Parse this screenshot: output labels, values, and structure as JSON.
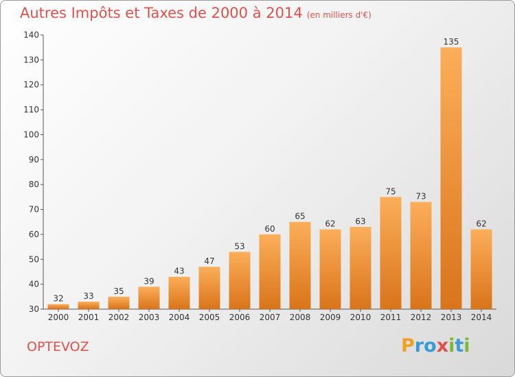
{
  "title": "Autres Impôts et Taxes de 2000 à 2014",
  "subtitle": "(en milliers d'€)",
  "commune": "OPTEVOZ",
  "logo": {
    "letters": [
      "P",
      "r",
      "o",
      "x",
      "i",
      "t",
      "i"
    ],
    "colors": [
      "#f0a020",
      "#3a9ad9",
      "#3a9ad9",
      "#e0504a",
      "#7ab83a",
      "#3a9ad9",
      "#7ab83a"
    ]
  },
  "colors": {
    "bar_light": "#fcae5a",
    "bar_dark": "#d9741a",
    "title": "#e0504a"
  },
  "chart_data": {
    "type": "bar",
    "categories": [
      "2000",
      "2001",
      "2002",
      "2003",
      "2004",
      "2005",
      "2006",
      "2007",
      "2008",
      "2009",
      "2010",
      "2011",
      "2012",
      "2013",
      "2014"
    ],
    "values": [
      32,
      33,
      35,
      39,
      43,
      47,
      53,
      60,
      65,
      62,
      63,
      75,
      73,
      135,
      62
    ],
    "ylim": [
      30,
      140
    ],
    "yticks": [
      30,
      40,
      50,
      60,
      70,
      80,
      90,
      100,
      110,
      120,
      130,
      140
    ],
    "grid": false
  }
}
